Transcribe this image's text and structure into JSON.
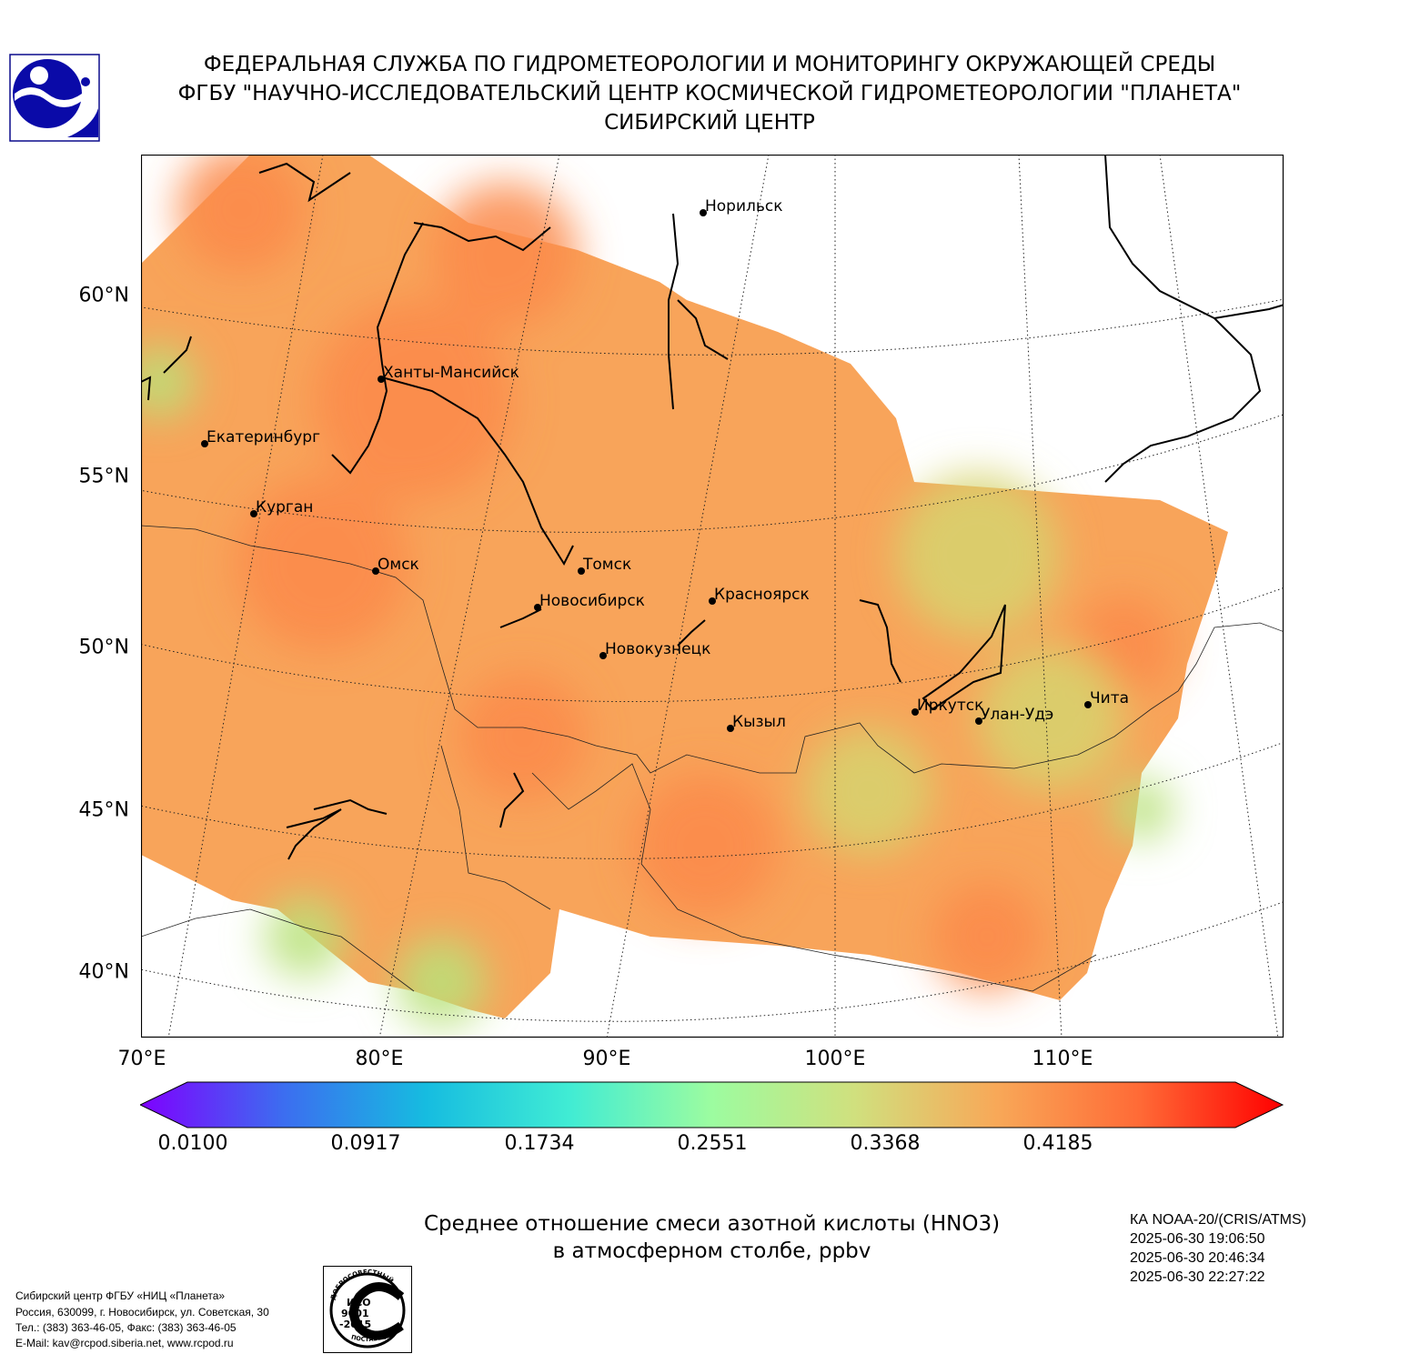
{
  "header": {
    "line1": "ФЕДЕРАЛЬНАЯ СЛУЖБА ПО ГИДРОМЕТЕОРОЛОГИИ И МОНИТОРИНГУ ОКРУЖАЮЩЕЙ СРЕДЫ",
    "line2": "ФГБУ \"НАУЧНО-ИССЛЕДОВАТЕЛЬСКИЙ ЦЕНТР КОСМИЧЕСКОЙ ГИДРОМЕТЕОРОЛОГИИ \"ПЛАНЕТА\"",
    "line3": "СИБИРСКИЙ ЦЕНТР"
  },
  "logo_icon": "planeta-globe-logo",
  "map": {
    "lat_labels": [
      "60°N",
      "55°N",
      "50°N",
      "45°N",
      "40°N"
    ],
    "lon_labels": [
      "70°E",
      "80°E",
      "90°E",
      "100°E",
      "110°E"
    ],
    "cities": [
      {
        "name": "Норильск"
      },
      {
        "name": "Ханты-Мансийск"
      },
      {
        "name": "Екатеринбург"
      },
      {
        "name": "Курган"
      },
      {
        "name": "Омск"
      },
      {
        "name": "Томск"
      },
      {
        "name": "Новосибирск"
      },
      {
        "name": "Красноярск"
      },
      {
        "name": "Новокузнецк"
      },
      {
        "name": "Кызыл"
      },
      {
        "name": "Иркутск"
      },
      {
        "name": "Улан-Удэ"
      },
      {
        "name": "Чита"
      }
    ]
  },
  "colorbar": {
    "ticks": [
      "0.0100",
      "0.0917",
      "0.1734",
      "0.2551",
      "0.3368",
      "0.4185"
    ],
    "colors": [
      "#7f00ff",
      "#3c6df0",
      "#16bce0",
      "#40ecd4",
      "#9cfca0",
      "#d0e07e",
      "#f8a858",
      "#ff6a36",
      "#ff0000"
    ]
  },
  "field_colors": {
    "base": "#f8a45a",
    "high": "#fb8a4a",
    "low": "#d6d46e",
    "edge": "#b8e27a"
  },
  "figure_title": {
    "line1": "Среднее отношение смеси азотной кислоты (HNO3)",
    "line2": "в атмосферном столбе, ppbv"
  },
  "satellite": {
    "name": "КА NOAA-20/(CRIS/ATMS)",
    "times": [
      "2025-06-30 19:06:50",
      "2025-06-30 20:46:34",
      "2025-06-30 22:27:22"
    ]
  },
  "footer": {
    "line1": "Сибирский центр ФГБУ «НИЦ «Планета»",
    "line2": "Россия, 630099, г. Новосибирск, ул. Советская, 30",
    "line3": "Тел.: (383) 363-46-05, Факс: (383) 363-46-05",
    "line4": "E-Mail: kav@rcpod.siberia.net, www.rcpod.ru"
  },
  "iso_stamp": {
    "top": "ДОБРОСОВЕСТНЫЙ",
    "line1": "ИСО",
    "line2": "9001",
    "line3": "-2015",
    "bottom": "ПОСТАВЩИК"
  }
}
